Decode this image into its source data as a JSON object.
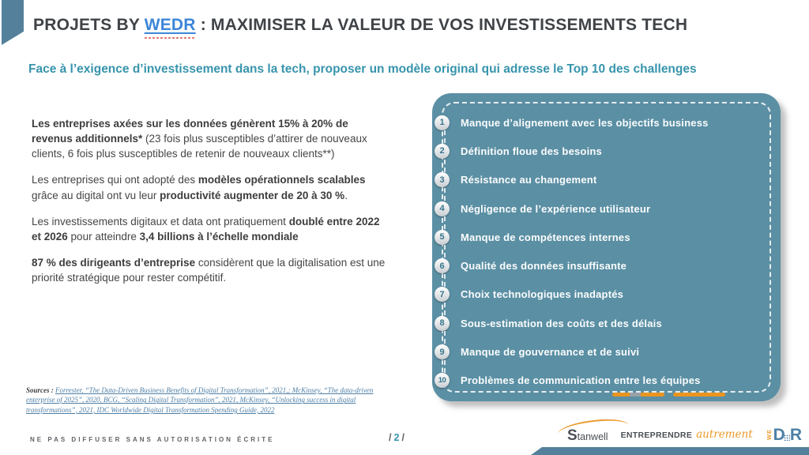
{
  "header": {
    "title_prefix": "PROJETS BY ",
    "title_link": "WEDR",
    "title_suffix": " :  MAXIMISER LA VALEUR DE VOS INVESTISSEMENTS TECH",
    "subtitle": "Face à l’exigence d’investissement dans la tech, proposer un modèle original qui adresse le Top 10 des challenges"
  },
  "left": {
    "paragraphs": [
      {
        "segments": [
          {
            "t": "Les entreprises axées sur les données génèrent 15% à 20% de revenus additionnels* ",
            "b": true
          },
          {
            "t": "(23 fois plus susceptibles d’attirer de nouveaux clients, 6 fois plus susceptibles de retenir de nouveaux clients**)",
            "b": false
          }
        ]
      },
      {
        "segments": [
          {
            "t": "Les entreprises qui ont adopté des ",
            "b": false
          },
          {
            "t": "modèles opérationnels scalables",
            "b": true
          },
          {
            "t": " grâce au digital ont vu leur ",
            "b": false
          },
          {
            "t": "productivité augmenter de 20 à 30 %",
            "b": true
          },
          {
            "t": ".",
            "b": false
          }
        ]
      },
      {
        "segments": [
          {
            "t": "Les investissements digitaux et data ont pratiquement ",
            "b": false
          },
          {
            "t": "doublé entre 2022 et 2026",
            "b": true
          },
          {
            "t": " pour atteindre ",
            "b": false
          },
          {
            "t": "3,4 billions à l’échelle mondiale",
            "b": true
          }
        ]
      },
      {
        "segments": [
          {
            "t": "87 % des dirigeants d’entreprise",
            "b": true
          },
          {
            "t": " considèrent que la digitalisation est une priorité stratégique pour rester compétitif.",
            "b": false
          }
        ]
      }
    ],
    "sources_label": "Sources :",
    "sources_text": "Forrester, “The Data-Driven Business Benefits of Digital Transformation”, 2021,; McKinsey, “The data-driven enterprise of 2025”, 2020,  BCG, “Scaling Digital Transformation”, 2021, McKinsey, “Unlocking success in digital transformations”, 2021, IDC Worldwide Digital Transformation Spending Guide, 2022"
  },
  "panel": {
    "items": [
      {
        "num": "1",
        "label": "Manque d’alignement avec les objectifs business"
      },
      {
        "num": "2",
        "label": "Définition floue des besoins"
      },
      {
        "num": "3",
        "label": "Résistance au changement"
      },
      {
        "num": "4",
        "label": "Négligence de l’expérience utilisateur"
      },
      {
        "num": "5",
        "label": "Manque de compétences internes"
      },
      {
        "num": "6",
        "label": "Qualité des données insuffisante"
      },
      {
        "num": "7",
        "label": "Choix technologiques inadaptés"
      },
      {
        "num": "8",
        "label": "Sous-estimation des coûts et des délais"
      },
      {
        "num": "9",
        "label": "Manque de gouvernance et de suivi"
      },
      {
        "num": "10",
        "label": "Problèmes de communication entre les équipes"
      }
    ]
  },
  "footer": {
    "disclaimer": "NE PAS DIFFUSER SANS AUTORISATION ÉCRITE",
    "page_pre": "/",
    "page_num": "2",
    "page_post": "/",
    "logos": {
      "stanwell_initial": "S",
      "stanwell_rest": "tanwell",
      "entreprendre": "ENTREPRENDRE",
      "autrement": "autrement",
      "wedr_we": "WE",
      "wedr_d": "D",
      "wedr_r": "R"
    }
  },
  "colors": {
    "panel_teal": "#5b8fa4",
    "accent_teal": "#3794ac",
    "link_blue": "#3c86d8",
    "orange": "#e8951f",
    "logo_blue": "#4d80a6"
  }
}
